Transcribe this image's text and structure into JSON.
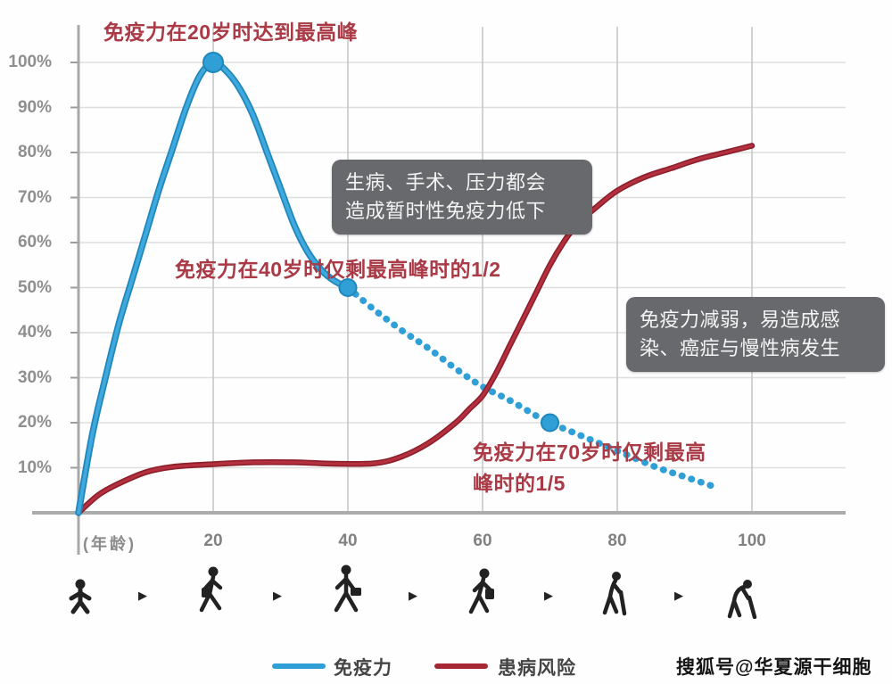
{
  "annotations": {
    "peak": "免疫力在20岁时达到最高峰",
    "age40": "免疫力在40岁时仅剩最高峰时的1/2",
    "age70": "免疫力在70岁时仅剩最高\n峰时的1/5",
    "text_color": "#a93a46"
  },
  "callouts": {
    "temporary_drop": "生病、手术、压力都会\n造成暂时性免疫力低下",
    "weakened_risk": "免疫力减弱，易造成感\n染、癌症与慢性病发生",
    "bg_color": "#67696c",
    "text_color": "#f4f4f4"
  },
  "axis": {
    "y_tick_labels": [
      "100%",
      "90%",
      "80%",
      "70%",
      "60%",
      "50%",
      "40%",
      "30%",
      "20%",
      "10%"
    ],
    "x_axis_label": "(年龄)",
    "x_tick_labels": [
      "20",
      "40",
      "60",
      "80",
      "100"
    ]
  },
  "chart_data": {
    "type": "line",
    "title": "",
    "xlabel": "(年龄)",
    "ylabel": "",
    "xlim": [
      0,
      113
    ],
    "ylim": [
      0,
      100
    ],
    "x_ticks": [
      20,
      40,
      60,
      80,
      100
    ],
    "y_tick_step": 10,
    "grid": true,
    "legend_position": "bottom",
    "series": [
      {
        "name": "免疫力",
        "color": "#2f9fd6",
        "edge_color": "#1f86bb",
        "style": "solid to age 40, dotted after 40",
        "solid_points": [
          [
            0,
            0
          ],
          [
            2,
            17
          ],
          [
            4,
            30
          ],
          [
            6,
            42
          ],
          [
            8,
            52
          ],
          [
            10,
            62
          ],
          [
            12,
            72
          ],
          [
            14,
            81
          ],
          [
            16,
            90
          ],
          [
            18,
            97
          ],
          [
            20,
            100
          ],
          [
            22,
            98
          ],
          [
            24,
            94
          ],
          [
            26,
            88
          ],
          [
            28,
            80
          ],
          [
            30,
            72
          ],
          [
            32,
            64
          ],
          [
            34,
            58
          ],
          [
            36,
            54
          ],
          [
            38,
            51.5
          ],
          [
            40,
            50
          ]
        ],
        "dotted_points": [
          [
            40,
            50
          ],
          [
            44,
            45
          ],
          [
            48,
            40.5
          ],
          [
            52,
            36.5
          ],
          [
            56,
            32
          ],
          [
            60,
            28
          ],
          [
            64,
            25
          ],
          [
            68,
            21.5
          ],
          [
            70,
            20
          ],
          [
            74,
            17.5
          ],
          [
            78,
            15
          ],
          [
            82,
            12.5
          ],
          [
            86,
            10
          ],
          [
            90,
            8
          ],
          [
            95,
            5.5
          ]
        ],
        "markers": [
          {
            "age": 20,
            "value": 100,
            "note": "peak"
          },
          {
            "age": 40,
            "value": 50,
            "note": "half of peak"
          },
          {
            "age": 70,
            "value": 20,
            "note": "one fifth of peak"
          }
        ]
      },
      {
        "name": "患病风险",
        "color": "#a52834",
        "edge_color": "#8c1f2b",
        "style": "solid",
        "points": [
          [
            0,
            0
          ],
          [
            3,
            4
          ],
          [
            6,
            6.5
          ],
          [
            10,
            9
          ],
          [
            14,
            10.2
          ],
          [
            20,
            10.8
          ],
          [
            26,
            11.2
          ],
          [
            32,
            11.2
          ],
          [
            38,
            10.9
          ],
          [
            44,
            11
          ],
          [
            48,
            12.5
          ],
          [
            52,
            15.5
          ],
          [
            56,
            20
          ],
          [
            58,
            23
          ],
          [
            60,
            26
          ],
          [
            62,
            31
          ],
          [
            64,
            37
          ],
          [
            66,
            43
          ],
          [
            68,
            49
          ],
          [
            70,
            55
          ],
          [
            72,
            60
          ],
          [
            74,
            64
          ],
          [
            77,
            68
          ],
          [
            80,
            71.5
          ],
          [
            84,
            74.5
          ],
          [
            88,
            76.5
          ],
          [
            92,
            78.5
          ],
          [
            96,
            80
          ],
          [
            100,
            81.5
          ]
        ]
      }
    ]
  },
  "lifecycle": {
    "stages": [
      "infant",
      "schoolchild",
      "working-adult",
      "middle-aged",
      "elderly-with-cane",
      "stooped-elder"
    ],
    "arrow_glyph": "▶"
  },
  "watermark": {
    "text": "搜狐号@华夏源干细胞"
  }
}
